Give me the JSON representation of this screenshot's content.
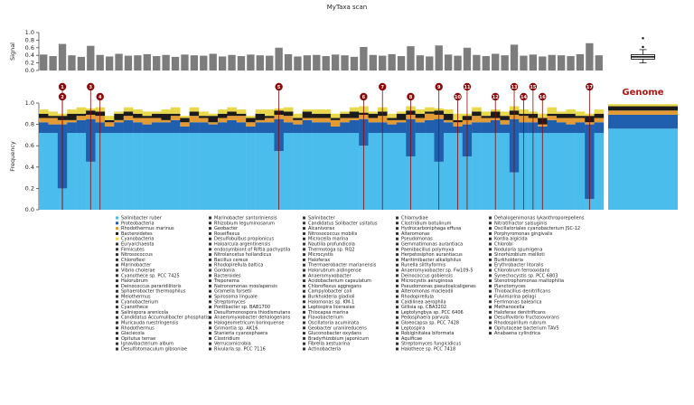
{
  "chart_data": {
    "type": "stacked_bar",
    "title": "MyTaxa scan",
    "ylabel": "Frequency",
    "ylim": [
      0,
      1
    ],
    "yticks": [
      {
        "value": 0,
        "label": "0.0"
      },
      {
        "value": 0.2,
        "label": "0.2"
      },
      {
        "value": 0.4,
        "label": "0.4"
      },
      {
        "value": 0.6,
        "label": "0.6"
      },
      {
        "value": 0.8,
        "label": "0.8"
      },
      {
        "value": 1,
        "label": "1.0"
      }
    ],
    "series": [
      {
        "name": "Salinibacter ruber",
        "color": "#4bbdec",
        "values": [
          0.72,
          0.72,
          0.2,
          0.72,
          0.72,
          0.45,
          0.72,
          0.72,
          0.72,
          0.72,
          0.72,
          0.72,
          0.72,
          0.72,
          0.72,
          0.72,
          0.72,
          0.72,
          0.72,
          0.72,
          0.72,
          0.72,
          0.72,
          0.72,
          0.72,
          0.55,
          0.72,
          0.72,
          0.72,
          0.72,
          0.72,
          0.72,
          0.72,
          0.72,
          0.6,
          0.72,
          0.72,
          0.72,
          0.72,
          0.5,
          0.72,
          0.72,
          0.45,
          0.72,
          0.72,
          0.5,
          0.72,
          0.72,
          0.72,
          0.72,
          0.35,
          0.72,
          0.72,
          0.72,
          0.72,
          0.72,
          0.72,
          0.72,
          0.1,
          0.72
        ]
      },
      {
        "name": "Proteobacteria",
        "color": "#1f5fae",
        "values": [
          0.1,
          0.08,
          0.6,
          0.1,
          0.12,
          0.4,
          0.1,
          0.06,
          0.1,
          0.12,
          0.1,
          0.08,
          0.1,
          0.1,
          0.12,
          0.06,
          0.1,
          0.1,
          0.08,
          0.1,
          0.12,
          0.1,
          0.06,
          0.1,
          0.1,
          0.3,
          0.1,
          0.08,
          0.12,
          0.1,
          0.1,
          0.06,
          0.1,
          0.12,
          0.25,
          0.1,
          0.1,
          0.08,
          0.1,
          0.35,
          0.1,
          0.12,
          0.4,
          0.1,
          0.06,
          0.3,
          0.1,
          0.1,
          0.12,
          0.08,
          0.5,
          0.1,
          0.1,
          0.06,
          0.12,
          0.1,
          0.08,
          0.1,
          0.7,
          0.1
        ]
      },
      {
        "name": "Rhodothermus marinus",
        "color": "#e39b35",
        "values": [
          0.04,
          0.06,
          0.04,
          0.02,
          0.04,
          0.04,
          0.06,
          0.04,
          0.02,
          0.04,
          0.04,
          0.06,
          0.04,
          0.02,
          0.04,
          0.04,
          0.06,
          0.04,
          0.02,
          0.04,
          0.04,
          0.06,
          0.04,
          0.02,
          0.04,
          0.04,
          0.06,
          0.04,
          0.02,
          0.04,
          0.04,
          0.06,
          0.04,
          0.02,
          0.04,
          0.04,
          0.06,
          0.04,
          0.02,
          0.04,
          0.04,
          0.06,
          0.04,
          0.02,
          0.04,
          0.04,
          0.06,
          0.04,
          0.02,
          0.04,
          0.04,
          0.06,
          0.04,
          0.02,
          0.04,
          0.04,
          0.06,
          0.04,
          0.02,
          0.04
        ]
      },
      {
        "name": "Bacteroidetes",
        "color": "#1b1b1b",
        "values": [
          0.04,
          0.02,
          0.04,
          0.06,
          0.02,
          0.04,
          0.04,
          0.02,
          0.06,
          0.04,
          0.04,
          0.02,
          0.04,
          0.06,
          0.02,
          0.04,
          0.04,
          0.02,
          0.06,
          0.04,
          0.04,
          0.02,
          0.04,
          0.06,
          0.02,
          0.04,
          0.04,
          0.02,
          0.06,
          0.04,
          0.04,
          0.02,
          0.04,
          0.06,
          0.02,
          0.04,
          0.04,
          0.02,
          0.06,
          0.04,
          0.04,
          0.02,
          0.04,
          0.06,
          0.02,
          0.04,
          0.04,
          0.02,
          0.06,
          0.04,
          0.04,
          0.02,
          0.04,
          0.06,
          0.02,
          0.04,
          0.04,
          0.02,
          0.06,
          0.04
        ]
      },
      {
        "name": "Cyanobacteria",
        "color": "#e8d84a",
        "values": [
          0.04,
          0.04,
          0.02,
          0.04,
          0.06,
          0.02,
          0.04,
          0.04,
          0.02,
          0.04,
          0.04,
          0.04,
          0.02,
          0.04,
          0.06,
          0.02,
          0.04,
          0.04,
          0.02,
          0.04,
          0.04,
          0.04,
          0.02,
          0.04,
          0.06,
          0.02,
          0.04,
          0.04,
          0.02,
          0.04,
          0.04,
          0.04,
          0.02,
          0.04,
          0.06,
          0.02,
          0.04,
          0.04,
          0.02,
          0.04,
          0.04,
          0.04,
          0.02,
          0.04,
          0.06,
          0.02,
          0.04,
          0.04,
          0.02,
          0.04,
          0.04,
          0.04,
          0.02,
          0.04,
          0.06,
          0.02,
          0.04,
          0.04,
          0.02,
          0.04
        ]
      }
    ],
    "more_taxa": [
      "Euryarchaeota",
      "Firmicutes",
      "Nitrosococcus",
      "Chloroflexi",
      "Marinobacter",
      "Vibrio cholerae",
      "Cyanothece sp. PCC 7425",
      "Halorubrum",
      "Deinococcus peraridilitoris",
      "Sphaerobacter thermophilus",
      "Meiothermus",
      "Cyanobacterium",
      "Cyanothece",
      "Salinispora arenicola",
      "Candidatus Accumulibacter phosphatis",
      "Muricauda ruestringensis",
      "Rhodothermus",
      "Glaciecola",
      "Opitutus terrae",
      "Ignavibacterium album",
      "Desulfotomaculum gibsoniae",
      "Marinobacter santoriniensis",
      "Rhizobium leguminosarum",
      "Geobacter",
      "Roseiflexus",
      "Desulfobulbus propionicus",
      "Haloarcula argentinensis",
      "endosymbiont of Riftia pachyptila",
      "Nitrolancetus hollandicus",
      "Bacillus cereus",
      "Rhodopirellula baltica",
      "Gordonia",
      "Bacteroides",
      "Treponema",
      "Natronomonas moolapensis",
      "Gramella forsetii",
      "Spirosoma linguale",
      "Streptomyces",
      "Pontibacter sp. BAB1700",
      "Desulfomonospora thiodismutans",
      "Anaeromyxobacter dehalogenans",
      "Halogeometricum borinquense",
      "Grimontia sp. AK16",
      "Stanieria cyanosphaera",
      "Clostridium",
      "Verrucomicrobia",
      "Rivularia sp. PCC 7116",
      "Salinibacter",
      "Candidatus Solibacter usitatus",
      "Alcanivorax",
      "Nitrosococcus mobilis",
      "Microcella marina",
      "Nautilia profundicola",
      "Thermotoga sp. RQ2",
      "Microcystis",
      "Haloferax",
      "Thermaerobacter marianensis",
      "Halorubrum aidingense",
      "Anaeromyxobacter",
      "Acidobacterium capsulatum",
      "Chloroflexus aggregans",
      "Campylobacter coli",
      "Burkholderia gladioli",
      "Halomonas sp. KM-1",
      "Leptospira licerasiae",
      "Thiocapsa marina",
      "Flavobacterium",
      "Oscillatoria acuminata",
      "Geobacter uraniireducens",
      "Gluconobacter oxydans",
      "Bradyrhizobium japonicum",
      "Fibrella aestuarina",
      "Actinobacteria",
      "Chlamydiae",
      "Clostridium botulinum",
      "Hydrocarboniphaga effusa",
      "Alteromonas",
      "Pseudomonas",
      "Gemmatimonas aurantiaca",
      "Paenibacillus polymyxa",
      "Herpetosiphon aurantiacus",
      "Maritimibacter alkaliphilus",
      "Runella slithyformis",
      "Anaeromyxobacter sp. Fw109-5",
      "Deinococcus gobiensis",
      "Microcystis aeruginosa",
      "Pseudomonas pseudoalcaligenes",
      "Alteromonas macleodii",
      "Rhodopirellula",
      "Caldilinea aerophila",
      "Gillisia sp. CBA3202",
      "Leptolyngbya sp. PCC 6406",
      "Pedosphaera parvula",
      "Gloeocapsa sp. PCC 7428",
      "Leptospira",
      "Robiginitalea biformata",
      "Aquificae",
      "Streptomyces fungicidicus",
      "Halothece sp. PCC 7418",
      "Dehalogenimonas lykanthroporepellens",
      "Nitratifractor salsuginis",
      "Oscillatoriales cyanobacterium JSC-12",
      "Porphyromonas gingivalis",
      "Kordia algicida",
      "Chlorobi",
      "Nodularia spumigena",
      "Sinorhizobium meliloti",
      "Burkholderia",
      "Erythrobacter litoralis",
      "Chlorobium ferrooxidans",
      "Synechocystis sp. PCC 6803",
      "Stenotrophomonas maltophilia",
      "Planctomyces",
      "Thiobacillus denitrificans",
      "Fulvimarina pelagi",
      "Ferrimonas balearica",
      "Methanocella",
      "Haloferax denitrificans",
      "Desulfovibrio fructosovorans",
      "Rhodospirillum rubrum",
      "Opitutaceae bacterium TAV5",
      "Anabaena cylindrica"
    ],
    "markers": [
      {
        "label": 1,
        "x": 2
      },
      {
        "label": 2,
        "x": 2
      },
      {
        "label": 3,
        "x": 5
      },
      {
        "label": 4,
        "x": 6
      },
      {
        "label": 5,
        "x": 25
      },
      {
        "label": 6,
        "x": 34
      },
      {
        "label": 7,
        "x": 36
      },
      {
        "label": 8,
        "x": 39
      },
      {
        "label": 9,
        "x": 42
      },
      {
        "label": 10,
        "x": 44
      },
      {
        "label": 11,
        "x": 45
      },
      {
        "label": 12,
        "x": 48
      },
      {
        "label": 13,
        "x": 50
      },
      {
        "label": 14,
        "x": 51
      },
      {
        "label": 15,
        "x": 52
      },
      {
        "label": 16,
        "x": 53
      },
      {
        "label": 17,
        "x": 58
      }
    ],
    "marker_color": "#8b0a0a",
    "genome": {
      "label": "Genome",
      "color": "#b01515",
      "values": [
        0.76,
        0.13,
        0.04,
        0.04,
        0.02
      ]
    },
    "signal": {
      "type": "bar",
      "ylabel": "Signal",
      "color": "#7d7d7d",
      "ylim": [
        0,
        1
      ],
      "yticks": [
        {
          "value": 0,
          "label": "0.0"
        },
        {
          "value": 0.2,
          "label": "0.2"
        },
        {
          "value": 0.4,
          "label": "0.4"
        },
        {
          "value": 0.6,
          "label": "0.6"
        },
        {
          "value": 0.8,
          "label": "0.8"
        },
        {
          "value": 1,
          "label": "1.0"
        }
      ],
      "values": [
        0.42,
        0.38,
        0.7,
        0.4,
        0.36,
        0.65,
        0.41,
        0.37,
        0.44,
        0.39,
        0.4,
        0.43,
        0.38,
        0.41,
        0.36,
        0.42,
        0.4,
        0.39,
        0.44,
        0.37,
        0.41,
        0.38,
        0.42,
        0.4,
        0.39,
        0.6,
        0.43,
        0.37,
        0.4,
        0.41,
        0.38,
        0.42,
        0.4,
        0.36,
        0.62,
        0.41,
        0.39,
        0.43,
        0.38,
        0.64,
        0.4,
        0.37,
        0.66,
        0.42,
        0.39,
        0.6,
        0.41,
        0.38,
        0.44,
        0.4,
        0.68,
        0.39,
        0.42,
        0.37,
        0.41,
        0.4,
        0.38,
        0.43,
        0.72,
        0.4
      ],
      "boxplot": {
        "min": 0.2,
        "q1": 0.3,
        "median": 0.36,
        "q3": 0.42,
        "max": 0.55,
        "outliers": [
          0.62,
          0.85
        ]
      }
    }
  }
}
